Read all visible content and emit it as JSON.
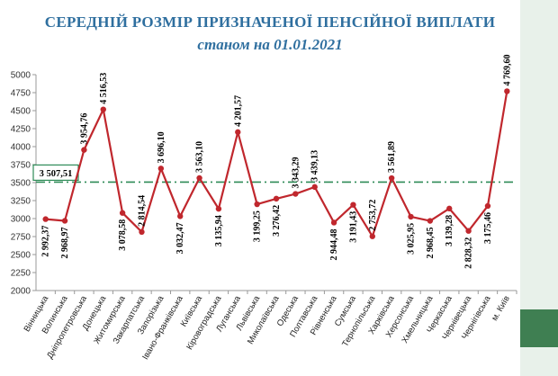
{
  "slide": {
    "title": "СЕРЕДНІЙ РОЗМІР ПРИЗНАЧЕНОЇ ПЕНСІЙНОЇ ВИПЛАТИ",
    "subtitle": "станом на 01.01.2021",
    "accent_color": "#2f6f9f",
    "side_block_color": "#3f7f52"
  },
  "chart_data": {
    "type": "line",
    "title": "",
    "xlabel": "",
    "ylabel": "",
    "ylim": [
      2000,
      5000
    ],
    "yticks": [
      2000,
      2250,
      2500,
      2750,
      3000,
      3250,
      3500,
      3750,
      4000,
      4250,
      4500,
      4750,
      5000
    ],
    "grid": false,
    "line_color": "#c0272d",
    "categories": [
      "Вінницька",
      "Волинська",
      "Дніпропетровська",
      "Донецька",
      "Житомирська",
      "Закарпатська",
      "Запорізька",
      "Івано-Франківська",
      "Київська",
      "Кіровоградська",
      "Луганська",
      "Львівська",
      "Миколаївська",
      "Одеська",
      "Полтавська",
      "Рівненська",
      "Сумська",
      "Тернопільська",
      "Харківська",
      "Херсонська",
      "Хмельницька",
      "Черкаська",
      "Чернівецька",
      "Чернігівська",
      "м. Київ"
    ],
    "values": [
      2992.37,
      2968.97,
      3954.76,
      4516.53,
      3078.58,
      2814.54,
      3696.1,
      3032.47,
      3563.1,
      3135.94,
      4201.57,
      3199.25,
      3276.42,
      3343.29,
      3439.13,
      2944.48,
      3191.43,
      2753.72,
      3561.89,
      3025.95,
      2968.45,
      3139.28,
      2828.32,
      3175.46,
      4769.6
    ],
    "labels": [
      "2 992,37",
      "2 968,97",
      "3 954,76",
      "4 516,53",
      "3 078,58",
      "2 814,54",
      "3 696,10",
      "3 032,47",
      "3 563,10",
      "3 135,94",
      "4 201,57",
      "3 199,25",
      "3 276,42",
      "3 343,29",
      "3 439,13",
      "2 944,48",
      "3 191,43",
      "2 753,72",
      "3 561,89",
      "3 025,95",
      "2 968,45",
      "3 139,28",
      "2 828,32",
      "3 175,46",
      "4 769,60"
    ],
    "label_position": [
      "below",
      "below",
      "above",
      "above",
      "below",
      "above",
      "above",
      "below",
      "above",
      "below",
      "above",
      "below",
      "below",
      "above",
      "above",
      "below",
      "below",
      "above",
      "above",
      "below",
      "below",
      "below",
      "below",
      "below",
      "above"
    ],
    "average": {
      "value": 3507.51,
      "label": "3 507,51",
      "color": "#2e8b57"
    }
  }
}
